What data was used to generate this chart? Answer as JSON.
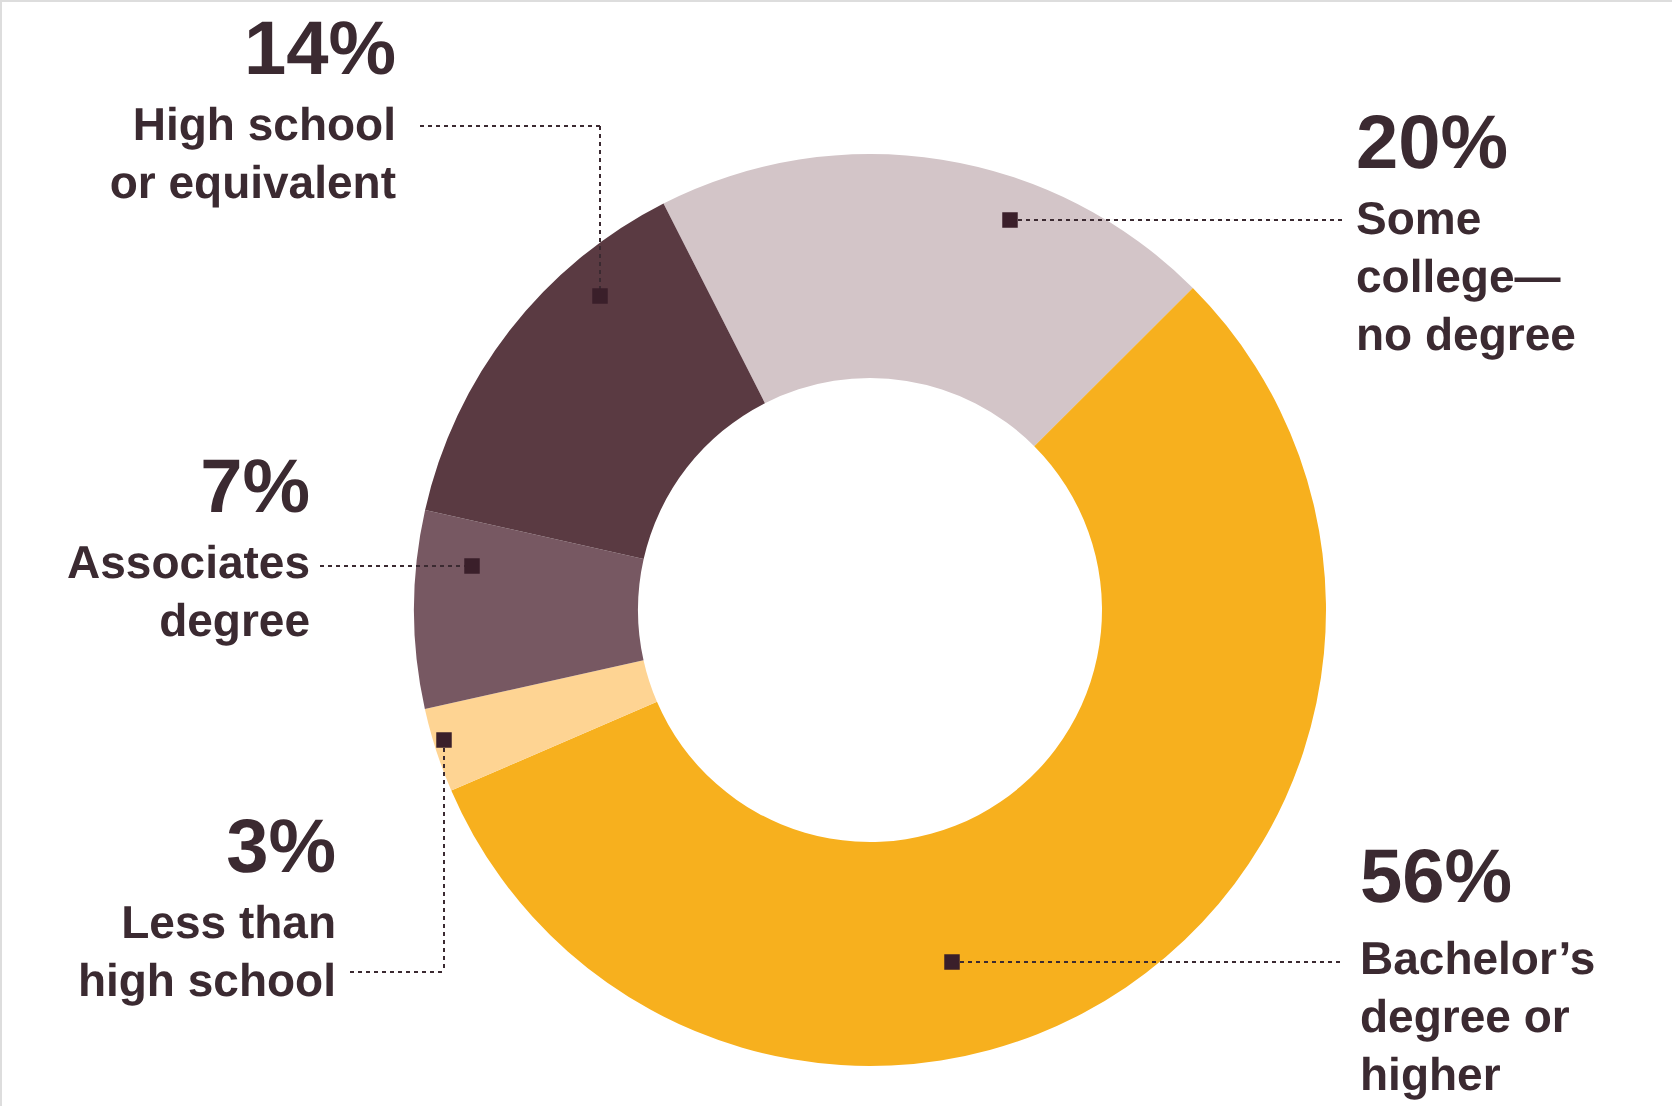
{
  "chart_data": {
    "type": "donut",
    "categories": [
      "Some college—no degree",
      "Bachelor’s degree or higher",
      "Less than high school",
      "Associates degree",
      "High school or equivalent"
    ],
    "values": [
      20,
      56,
      3,
      7,
      14
    ],
    "colors": [
      "#d3c5c8",
      "#f7b01e",
      "#fed493",
      "#775862",
      "#5a3a42"
    ],
    "value_labels": [
      "20%",
      "56%",
      "3%",
      "7%",
      "14%"
    ]
  }
}
